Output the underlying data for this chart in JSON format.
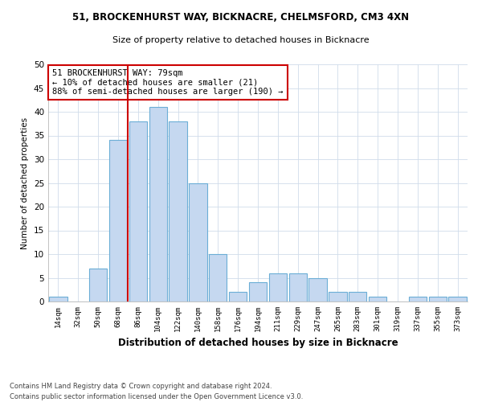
{
  "title1": "51, BROCKENHURST WAY, BICKNACRE, CHELMSFORD, CM3 4XN",
  "title2": "Size of property relative to detached houses in Bicknacre",
  "xlabel": "Distribution of detached houses by size in Bicknacre",
  "ylabel": "Number of detached properties",
  "categories": [
    "14sqm",
    "32sqm",
    "50sqm",
    "68sqm",
    "86sqm",
    "104sqm",
    "122sqm",
    "140sqm",
    "158sqm",
    "176sqm",
    "194sqm",
    "211sqm",
    "229sqm",
    "247sqm",
    "265sqm",
    "283sqm",
    "301sqm",
    "319sqm",
    "337sqm",
    "355sqm",
    "373sqm"
  ],
  "values": [
    1,
    0,
    7,
    34,
    38,
    41,
    38,
    25,
    10,
    2,
    4,
    6,
    6,
    5,
    2,
    2,
    1,
    0,
    1,
    1,
    1
  ],
  "bar_color": "#c5d8f0",
  "bar_edge_color": "#6baed6",
  "vline_color": "#cc0000",
  "annotation_text": "51 BROCKENHURST WAY: 79sqm\n← 10% of detached houses are smaller (21)\n88% of semi-detached houses are larger (190) →",
  "annotation_box_color": "#ffffff",
  "annotation_box_edge": "#cc0000",
  "ylim": [
    0,
    50
  ],
  "yticks": [
    0,
    5,
    10,
    15,
    20,
    25,
    30,
    35,
    40,
    45,
    50
  ],
  "footer1": "Contains HM Land Registry data © Crown copyright and database right 2024.",
  "footer2": "Contains public sector information licensed under the Open Government Licence v3.0.",
  "bg_color": "#ffffff",
  "grid_color": "#d0dcea"
}
